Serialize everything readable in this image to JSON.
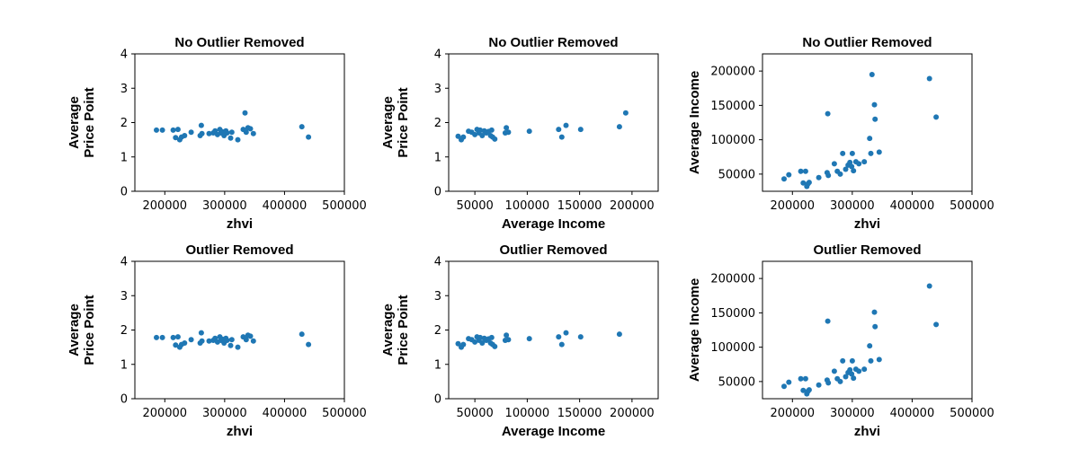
{
  "colors": {
    "marker": "#1f77b4",
    "axes": "#000000",
    "background": "#ffffff"
  },
  "chart_data": [
    {
      "type": "scatter",
      "title": "No Outlier Removed",
      "xlabel": "zhvi",
      "ylabel": [
        "Average",
        "Price Point"
      ],
      "xlim": [
        150000,
        500000
      ],
      "ylim": [
        0,
        4
      ],
      "xticks": [
        200000,
        300000,
        400000,
        500000
      ],
      "yticks": [
        0,
        1,
        2,
        3,
        4
      ],
      "points": [
        [
          186000,
          1.78
        ],
        [
          196000,
          1.78
        ],
        [
          214000,
          1.78
        ],
        [
          218000,
          1.56
        ],
        [
          222000,
          1.8
        ],
        [
          225000,
          1.5
        ],
        [
          228000,
          1.58
        ],
        [
          233000,
          1.62
        ],
        [
          244000,
          1.72
        ],
        [
          259000,
          1.62
        ],
        [
          261000,
          1.92
        ],
        [
          262000,
          1.68
        ],
        [
          274000,
          1.68
        ],
        [
          281000,
          1.7
        ],
        [
          284000,
          1.76
        ],
        [
          288000,
          1.65
        ],
        [
          292000,
          1.8
        ],
        [
          294000,
          1.7
        ],
        [
          296000,
          1.73
        ],
        [
          299000,
          1.62
        ],
        [
          302000,
          1.76
        ],
        [
          304000,
          1.7
        ],
        [
          310000,
          1.55
        ],
        [
          312000,
          1.72
        ],
        [
          322000,
          1.5
        ],
        [
          331000,
          1.8
        ],
        [
          334000,
          2.28
        ],
        [
          336000,
          1.72
        ],
        [
          339000,
          1.85
        ],
        [
          343000,
          1.82
        ],
        [
          348000,
          1.68
        ],
        [
          429000,
          1.88
        ],
        [
          440000,
          1.58
        ]
      ]
    },
    {
      "type": "scatter",
      "title": "No Outlier Removed",
      "xlabel": "Average Income",
      "ylabel": [
        "Average",
        "Price Point"
      ],
      "xlim": [
        25000,
        225000
      ],
      "ylim": [
        0,
        4
      ],
      "xticks": [
        50000,
        100000,
        150000,
        200000
      ],
      "yticks": [
        0,
        1,
        2,
        3,
        4
      ],
      "points": [
        [
          34000,
          1.6
        ],
        [
          37000,
          1.5
        ],
        [
          39000,
          1.58
        ],
        [
          44000,
          1.75
        ],
        [
          47000,
          1.72
        ],
        [
          50000,
          1.65
        ],
        [
          52000,
          1.8
        ],
        [
          54000,
          1.7
        ],
        [
          55000,
          1.78
        ],
        [
          57000,
          1.62
        ],
        [
          59000,
          1.76
        ],
        [
          61000,
          1.7
        ],
        [
          63000,
          1.74
        ],
        [
          65000,
          1.62
        ],
        [
          66000,
          1.78
        ],
        [
          67000,
          1.58
        ],
        [
          69000,
          1.52
        ],
        [
          79000,
          1.7
        ],
        [
          80000,
          1.85
        ],
        [
          82000,
          1.72
        ],
        [
          102000,
          1.75
        ],
        [
          130000,
          1.8
        ],
        [
          133000,
          1.58
        ],
        [
          137000,
          1.92
        ],
        [
          151000,
          1.8
        ],
        [
          188000,
          1.88
        ],
        [
          194000,
          2.28
        ]
      ]
    },
    {
      "type": "scatter",
      "title": "No Outlier Removed",
      "xlabel": "zhvi",
      "ylabel": [
        "Average Income"
      ],
      "xlim": [
        150000,
        500000
      ],
      "ylim": [
        25000,
        225000
      ],
      "xticks": [
        200000,
        300000,
        400000,
        500000
      ],
      "yticks": [
        50000,
        100000,
        150000,
        200000
      ],
      "points": [
        [
          186000,
          43000
        ],
        [
          194000,
          49000
        ],
        [
          214000,
          54000
        ],
        [
          218000,
          37000
        ],
        [
          222000,
          54000
        ],
        [
          224000,
          32000
        ],
        [
          226000,
          36000
        ],
        [
          228000,
          38000
        ],
        [
          244000,
          45000
        ],
        [
          258000,
          52000
        ],
        [
          260000,
          48000
        ],
        [
          259000,
          138000
        ],
        [
          270000,
          65000
        ],
        [
          275000,
          54000
        ],
        [
          280000,
          50000
        ],
        [
          284000,
          80000
        ],
        [
          289000,
          57000
        ],
        [
          293000,
          63000
        ],
        [
          296000,
          67000
        ],
        [
          299000,
          61000
        ],
        [
          300000,
          80000
        ],
        [
          302000,
          55000
        ],
        [
          306000,
          68000
        ],
        [
          311000,
          65000
        ],
        [
          320000,
          68000
        ],
        [
          329000,
          102000
        ],
        [
          331000,
          80000
        ],
        [
          333000,
          195000
        ],
        [
          337000,
          151000
        ],
        [
          338000,
          130000
        ],
        [
          345000,
          82000
        ],
        [
          429000,
          189000
        ],
        [
          440000,
          133000
        ]
      ]
    },
    {
      "type": "scatter",
      "title": "Outlier Removed",
      "xlabel": "zhvi",
      "ylabel": [
        "Average",
        "Price Point"
      ],
      "xlim": [
        150000,
        500000
      ],
      "ylim": [
        0,
        4
      ],
      "xticks": [
        200000,
        300000,
        400000,
        500000
      ],
      "yticks": [
        0,
        1,
        2,
        3,
        4
      ],
      "points": [
        [
          186000,
          1.78
        ],
        [
          196000,
          1.78
        ],
        [
          214000,
          1.78
        ],
        [
          218000,
          1.56
        ],
        [
          222000,
          1.8
        ],
        [
          225000,
          1.5
        ],
        [
          228000,
          1.58
        ],
        [
          233000,
          1.62
        ],
        [
          244000,
          1.72
        ],
        [
          259000,
          1.62
        ],
        [
          261000,
          1.92
        ],
        [
          262000,
          1.68
        ],
        [
          274000,
          1.68
        ],
        [
          281000,
          1.7
        ],
        [
          284000,
          1.76
        ],
        [
          288000,
          1.65
        ],
        [
          292000,
          1.8
        ],
        [
          294000,
          1.7
        ],
        [
          296000,
          1.73
        ],
        [
          299000,
          1.62
        ],
        [
          302000,
          1.76
        ],
        [
          304000,
          1.7
        ],
        [
          310000,
          1.55
        ],
        [
          312000,
          1.72
        ],
        [
          322000,
          1.5
        ],
        [
          331000,
          1.8
        ],
        [
          336000,
          1.72
        ],
        [
          339000,
          1.85
        ],
        [
          343000,
          1.82
        ],
        [
          348000,
          1.68
        ],
        [
          429000,
          1.88
        ],
        [
          440000,
          1.58
        ]
      ]
    },
    {
      "type": "scatter",
      "title": "Outlier Removed",
      "xlabel": "Average Income",
      "ylabel": [
        "Average",
        "Price Point"
      ],
      "xlim": [
        25000,
        225000
      ],
      "ylim": [
        0,
        4
      ],
      "xticks": [
        50000,
        100000,
        150000,
        200000
      ],
      "yticks": [
        0,
        1,
        2,
        3,
        4
      ],
      "points": [
        [
          34000,
          1.6
        ],
        [
          37000,
          1.5
        ],
        [
          39000,
          1.58
        ],
        [
          44000,
          1.75
        ],
        [
          47000,
          1.72
        ],
        [
          50000,
          1.65
        ],
        [
          52000,
          1.8
        ],
        [
          54000,
          1.7
        ],
        [
          55000,
          1.78
        ],
        [
          57000,
          1.62
        ],
        [
          59000,
          1.76
        ],
        [
          61000,
          1.7
        ],
        [
          63000,
          1.74
        ],
        [
          65000,
          1.62
        ],
        [
          66000,
          1.78
        ],
        [
          67000,
          1.58
        ],
        [
          69000,
          1.52
        ],
        [
          79000,
          1.7
        ],
        [
          80000,
          1.85
        ],
        [
          82000,
          1.72
        ],
        [
          102000,
          1.75
        ],
        [
          130000,
          1.8
        ],
        [
          133000,
          1.58
        ],
        [
          137000,
          1.92
        ],
        [
          151000,
          1.8
        ],
        [
          188000,
          1.88
        ]
      ]
    },
    {
      "type": "scatter",
      "title": "Outlier Removed",
      "xlabel": "zhvi",
      "ylabel": [
        "Average Income"
      ],
      "xlim": [
        150000,
        500000
      ],
      "ylim": [
        25000,
        225000
      ],
      "xticks": [
        200000,
        300000,
        400000,
        500000
      ],
      "yticks": [
        50000,
        100000,
        150000,
        200000
      ],
      "points": [
        [
          186000,
          43000
        ],
        [
          194000,
          49000
        ],
        [
          214000,
          54000
        ],
        [
          218000,
          37000
        ],
        [
          222000,
          54000
        ],
        [
          224000,
          32000
        ],
        [
          226000,
          36000
        ],
        [
          228000,
          38000
        ],
        [
          244000,
          45000
        ],
        [
          258000,
          52000
        ],
        [
          260000,
          48000
        ],
        [
          259000,
          138000
        ],
        [
          270000,
          65000
        ],
        [
          275000,
          54000
        ],
        [
          280000,
          50000
        ],
        [
          284000,
          80000
        ],
        [
          289000,
          57000
        ],
        [
          293000,
          63000
        ],
        [
          296000,
          67000
        ],
        [
          299000,
          61000
        ],
        [
          300000,
          80000
        ],
        [
          302000,
          55000
        ],
        [
          306000,
          68000
        ],
        [
          311000,
          65000
        ],
        [
          320000,
          68000
        ],
        [
          329000,
          102000
        ],
        [
          331000,
          80000
        ],
        [
          337000,
          151000
        ],
        [
          338000,
          130000
        ],
        [
          345000,
          82000
        ],
        [
          429000,
          189000
        ],
        [
          440000,
          133000
        ]
      ]
    }
  ]
}
